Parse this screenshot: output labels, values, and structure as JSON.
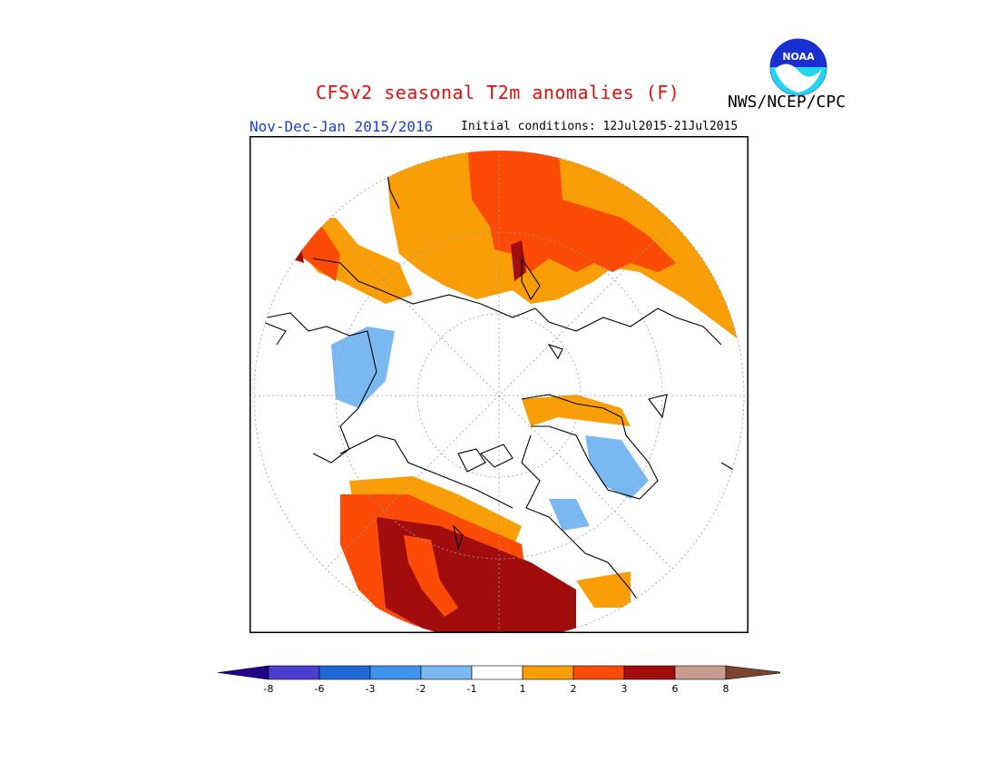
{
  "title": "CFSv2 seasonal T2m anomalies (F)",
  "period": "Nov-Dec-Jan 2015/2016",
  "initial_conditions": "Initial conditions: 12Jul2015-21Jul2015",
  "agency": "NWS/NCEP/CPC",
  "logo": {
    "icon": "noaa-logo",
    "text": "NOAA"
  },
  "colors": {
    "lt-8": "#22008a",
    "-8to-6": "#4b3fcf",
    "-6to-3": "#1f6ad6",
    "-3to-2": "#3f93ec",
    "-2to-1": "#7ab8f2",
    "-1to1": "#ffffff",
    "1to2": "#f99e07",
    "2to3": "#fb4b06",
    "3to6": "#a10d0d",
    "6to8": "#c89c8c",
    "gt8": "#7b4530"
  },
  "legend": {
    "ticks": [
      "-8",
      "-6",
      "-3",
      "-2",
      "-1",
      "1",
      "2",
      "3",
      "6",
      "8"
    ]
  }
}
